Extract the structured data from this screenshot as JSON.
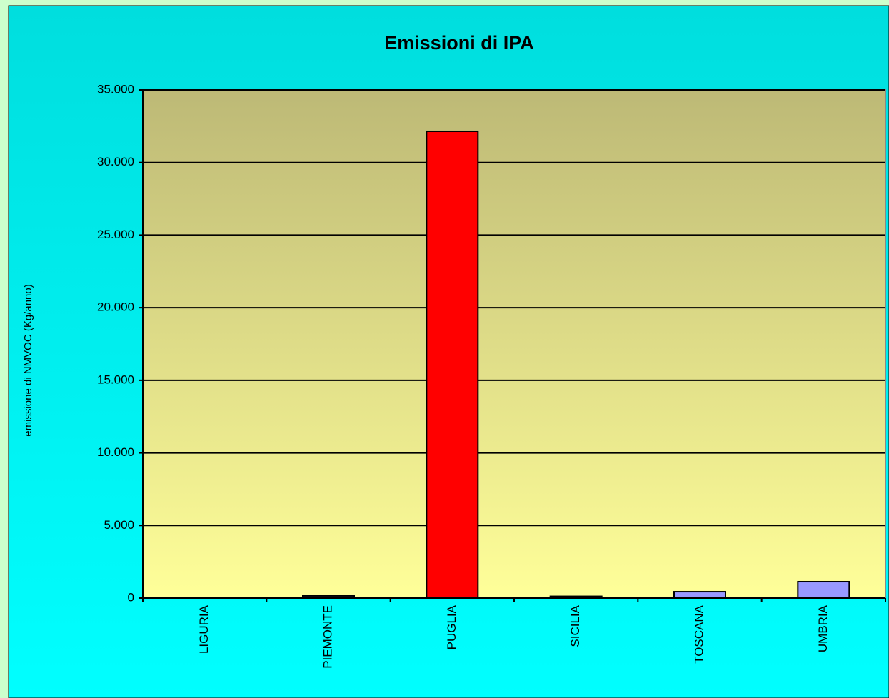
{
  "chart_data": {
    "type": "bar",
    "title": "Emissioni di IPA",
    "y_label": "emissione di NMVOC (Kg/anno)",
    "categories": [
      "LIGURIA",
      "PIEMONTE",
      "PUGLIA",
      "SICILIA",
      "TOSCANA",
      "UMBRIA"
    ],
    "values": [
      0,
      150,
      32150,
      120,
      440,
      1130
    ],
    "colors": [
      "#9999ff",
      "#9999ff",
      "#ff0000",
      "#9999ff",
      "#9999ff",
      "#9999ff"
    ],
    "ylim": [
      0,
      35000
    ],
    "yticks": [
      0,
      {
        "value": 5000,
        "label": "5.000"
      },
      {
        "value": 10000,
        "label": "10.000"
      },
      {
        "value": 15000,
        "label": "15.000"
      },
      {
        "value": 20000,
        "label": "20.000"
      },
      {
        "value": 25000,
        "label": "25.000"
      },
      {
        "value": 30000,
        "label": "30.000"
      },
      {
        "value": 35000,
        "label": "35.000"
      }
    ],
    "grid": true
  }
}
